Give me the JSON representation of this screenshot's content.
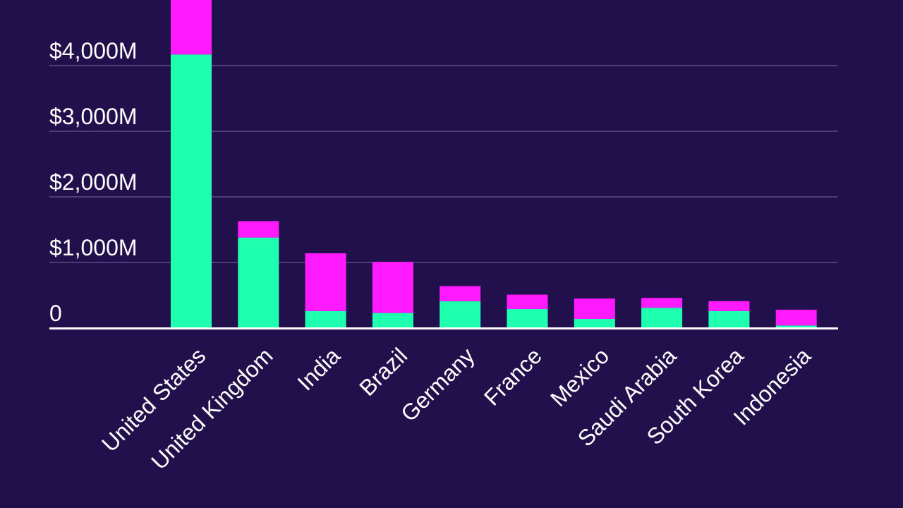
{
  "chart_data": {
    "type": "bar",
    "stacked": true,
    "categories": [
      "United States",
      "United Kingdom",
      "India",
      "Brazil",
      "Germany",
      "France",
      "Mexico",
      "Saudi Arabia",
      "South Korea",
      "Indonesia"
    ],
    "series": [
      {
        "color": "#1effb0",
        "values": [
          4170,
          1380,
          260,
          230,
          410,
          290,
          140,
          310,
          260,
          40
        ]
      },
      {
        "color": "#ff1aff",
        "values": [
          830,
          250,
          880,
          780,
          230,
          220,
          310,
          150,
          150,
          240
        ]
      }
    ],
    "ylim": [
      0,
      5000
    ],
    "yticks": [
      {
        "value": 0,
        "label": "0"
      },
      {
        "value": 1000,
        "label": "$1,000M"
      },
      {
        "value": 2000,
        "label": "$2,000M"
      },
      {
        "value": 3000,
        "label": "$3,000M"
      },
      {
        "value": 4000,
        "label": "$4,000M"
      }
    ],
    "grid": true,
    "colors": {
      "background": "#22104d",
      "grid": "#5a4a86",
      "axis": "#ffffff",
      "text": "#ffffff"
    }
  }
}
